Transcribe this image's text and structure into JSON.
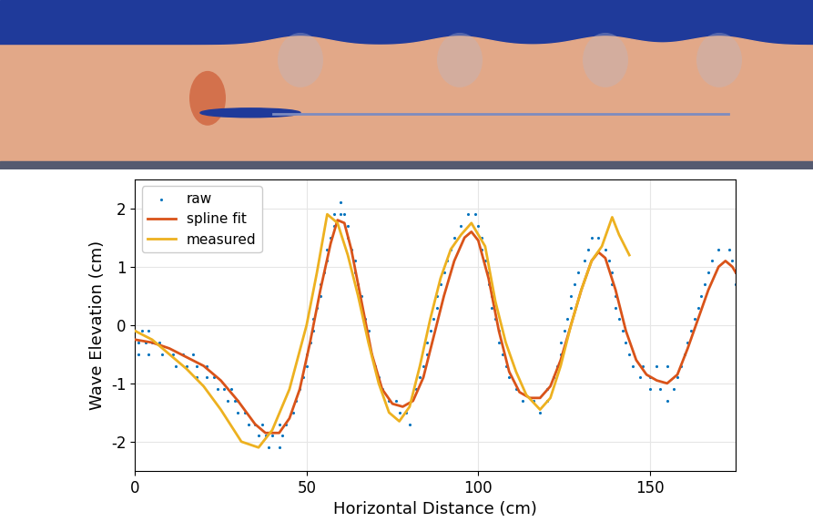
{
  "chart_data": {
    "type": "line",
    "xlabel": "Horizontal Distance (cm)",
    "ylabel": "Wave Elevation (cm)",
    "xlim": [
      0,
      175
    ],
    "ylim": [
      -2.5,
      2.5
    ],
    "xticks": [
      0,
      50,
      100,
      150
    ],
    "yticks": [
      -2,
      -1,
      0,
      1,
      2
    ],
    "grid": true,
    "legend": "upper left",
    "series": [
      {
        "name": "raw",
        "type": "scatter",
        "marker": "point",
        "color": "#0072bd",
        "x": [
          0,
          2,
          4,
          1,
          3,
          5,
          7,
          1,
          4,
          8,
          11,
          14,
          17,
          12,
          15,
          18,
          21,
          18,
          21,
          23,
          24,
          26,
          28,
          27,
          29,
          30,
          30,
          32,
          33,
          35,
          37,
          36,
          38,
          40,
          39,
          42,
          43,
          44,
          42,
          46,
          47,
          48,
          49,
          50,
          50,
          51,
          52,
          52,
          53,
          54,
          54,
          55,
          56,
          56,
          57,
          58,
          58,
          60,
          60,
          61,
          62,
          62,
          63,
          64,
          64,
          65,
          66,
          66,
          67,
          68,
          68,
          69,
          70,
          71,
          72,
          74,
          76,
          77,
          79,
          80,
          82,
          83,
          84,
          85,
          85,
          86,
          87,
          88,
          88,
          89,
          90,
          91,
          92,
          93,
          95,
          97,
          99,
          100,
          101,
          101,
          102,
          103,
          103,
          104,
          104,
          105,
          106,
          106,
          107,
          108,
          109,
          111,
          113,
          116,
          118,
          120,
          120,
          122,
          123,
          124,
          124,
          125,
          126,
          127,
          127,
          128,
          129,
          131,
          132,
          133,
          135,
          137,
          138,
          139,
          139,
          140,
          140,
          141,
          142,
          143,
          144,
          145,
          147,
          150,
          148,
          152,
          155,
          150,
          153,
          155,
          157,
          158,
          159,
          160,
          161,
          162,
          163,
          164,
          165,
          166,
          167,
          168,
          170,
          173,
          174,
          175,
          175
        ],
        "values": [
          -0.1,
          -0.1,
          -0.1,
          -0.3,
          -0.3,
          -0.3,
          -0.3,
          -0.5,
          -0.5,
          -0.5,
          -0.5,
          -0.5,
          -0.5,
          -0.7,
          -0.7,
          -0.7,
          -0.7,
          -0.9,
          -0.9,
          -0.9,
          -1.1,
          -1.1,
          -1.1,
          -1.3,
          -1.3,
          -1.3,
          -1.5,
          -1.5,
          -1.7,
          -1.7,
          -1.7,
          -1.9,
          -1.9,
          -1.9,
          -2.1,
          -2.1,
          -1.9,
          -1.7,
          -1.7,
          -1.5,
          -1.3,
          -1.1,
          -0.9,
          -0.7,
          -0.5,
          -0.3,
          -0.1,
          0.1,
          0.3,
          0.5,
          0.7,
          0.9,
          1.1,
          1.3,
          1.5,
          1.7,
          1.9,
          1.9,
          2.1,
          1.9,
          1.7,
          1.5,
          1.3,
          1.1,
          0.9,
          0.7,
          0.5,
          0.3,
          0.1,
          -0.1,
          -0.3,
          -0.5,
          -0.7,
          -0.9,
          -1.1,
          -1.3,
          -1.3,
          -1.5,
          -1.5,
          -1.7,
          -1.1,
          -0.9,
          -0.7,
          -0.5,
          -0.3,
          -0.1,
          0.1,
          0.3,
          0.5,
          0.7,
          0.9,
          1.1,
          1.3,
          1.5,
          1.7,
          1.9,
          1.9,
          1.7,
          1.5,
          1.3,
          1.1,
          0.9,
          0.7,
          0.5,
          0.3,
          0.1,
          -0.1,
          -0.3,
          -0.5,
          -0.7,
          -0.9,
          -1.1,
          -1.3,
          -1.3,
          -1.5,
          -1.3,
          -1.1,
          -0.9,
          -0.7,
          -0.5,
          -0.3,
          -0.1,
          0.1,
          0.3,
          0.5,
          0.7,
          0.9,
          1.1,
          1.3,
          1.5,
          1.5,
          1.3,
          1.1,
          0.9,
          0.7,
          0.5,
          0.3,
          0.1,
          -0.1,
          -0.3,
          -0.5,
          -0.7,
          -0.9,
          -0.9,
          -0.7,
          -0.7,
          -0.7,
          -1.1,
          -1.1,
          -1.3,
          -1.1,
          -0.9,
          -0.7,
          -0.5,
          -0.3,
          -0.1,
          0.1,
          0.3,
          0.5,
          0.7,
          0.9,
          1.1,
          1.3,
          1.3,
          1.1,
          0.9,
          0.7
        ]
      },
      {
        "name": "spline fit",
        "type": "line",
        "line_style": "solid",
        "color": "#d95319",
        "x": [
          0,
          5,
          10,
          15,
          20,
          25,
          30,
          35,
          38,
          42,
          45,
          48,
          51,
          54,
          57,
          59,
          61,
          63,
          66,
          69,
          72,
          75,
          78,
          81,
          84,
          87,
          90,
          93,
          96,
          98,
          100,
          103,
          106,
          109,
          112,
          115,
          118,
          121,
          124,
          127,
          130,
          133,
          135,
          137,
          140,
          143,
          146,
          149,
          152,
          155,
          158,
          161,
          164,
          167,
          170,
          172,
          174,
          175
        ],
        "values": [
          -0.25,
          -0.3,
          -0.4,
          -0.55,
          -0.7,
          -0.95,
          -1.3,
          -1.7,
          -1.85,
          -1.85,
          -1.6,
          -1.1,
          -0.3,
          0.6,
          1.4,
          1.8,
          1.75,
          1.3,
          0.4,
          -0.5,
          -1.1,
          -1.35,
          -1.4,
          -1.3,
          -0.9,
          -0.2,
          0.5,
          1.1,
          1.5,
          1.6,
          1.45,
          0.8,
          -0.1,
          -0.8,
          -1.15,
          -1.25,
          -1.25,
          -1.05,
          -0.6,
          0.0,
          0.6,
          1.1,
          1.25,
          1.15,
          0.6,
          -0.1,
          -0.6,
          -0.85,
          -0.95,
          -1.0,
          -0.85,
          -0.4,
          0.1,
          0.6,
          1.0,
          1.1,
          1.0,
          0.9
        ]
      },
      {
        "name": "measured",
        "type": "line",
        "line_style": "solid",
        "color": "#edb120",
        "x": [
          0,
          5,
          10,
          15,
          20,
          25,
          31,
          36,
          40,
          45,
          50,
          53,
          56,
          59,
          62,
          65,
          68,
          71,
          74,
          77,
          80,
          83,
          86,
          89,
          92,
          95,
          98,
          102,
          105,
          108,
          111,
          114,
          118,
          121,
          124,
          127,
          130,
          133,
          136,
          139,
          141,
          144
        ],
        "values": [
          -0.1,
          -0.25,
          -0.5,
          -0.75,
          -1.05,
          -1.45,
          -2.0,
          -2.1,
          -1.8,
          -1.1,
          0.0,
          0.9,
          1.9,
          1.75,
          1.2,
          0.5,
          -0.3,
          -1.0,
          -1.5,
          -1.65,
          -1.4,
          -0.7,
          0.1,
          0.8,
          1.3,
          1.55,
          1.75,
          1.35,
          0.4,
          -0.3,
          -0.8,
          -1.2,
          -1.45,
          -1.25,
          -0.7,
          0.0,
          0.6,
          1.1,
          1.35,
          1.85,
          1.55,
          1.2
        ]
      }
    ]
  }
}
